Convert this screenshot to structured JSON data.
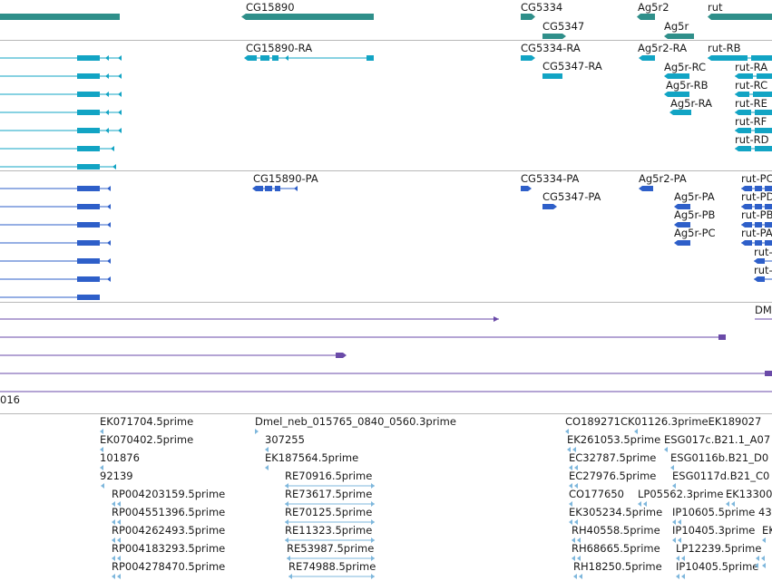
{
  "colors": {
    "gene": "#2f8f8a",
    "transcript": "#12a4c4",
    "protein": "#2e5fc9",
    "alignment": "#6a4aa8",
    "est": "#7eb7dc",
    "separator": "#b8b8b8",
    "text": "#1a1a1a"
  },
  "tracks": {
    "genes": {
      "labels": [
        "CG15890",
        "CG5334",
        "CG5347",
        "Ag5r2",
        "Ag5r",
        "rut"
      ]
    },
    "transcripts": {
      "labels": [
        "CG15890-RA",
        "CG5334-RA",
        "CG5347-RA",
        "Ag5r2-RA",
        "rut-RB",
        "Ag5r-RC",
        "rut-RA",
        "Ag5r-RB",
        "rut-RC",
        "Ag5r-RA",
        "rut-RE",
        "rut-RF",
        "rut-RD"
      ]
    },
    "proteins": {
      "labels": [
        "CG15890-PA",
        "CG5334-PA",
        "CG5347-PA",
        "Ag5r2-PA",
        "Ag5r-PA",
        "Ag5r-PB",
        "Ag5r-PC",
        "rut-PC",
        "rut-PD",
        "rut-PB",
        "rut-PA",
        "rut-",
        "rut-"
      ]
    },
    "alignments": {
      "labels": [
        "DM",
        "016"
      ]
    },
    "ests": {
      "labels": [
        "EK071704.5prime",
        "EK070402.5prime",
        "101876",
        "92139",
        "RP004203159.5prime",
        "RP004551396.5prime",
        "RP004262493.5prime",
        "RP004183293.5prime",
        "RP004278470.5prime",
        "Dmel_neb_015765_0840_0560.3prime",
        "307255",
        "EK187564.5prime",
        "RE70916.5prime",
        "RE73617.5prime",
        "RE70125.5prime",
        "RE11323.5prime",
        "RE53987.5prime",
        "RE74988.5prime",
        "CO189271CK01126.3primeEK189027",
        "EK261053.5prime",
        "EC32787.5prime",
        "EC27976.5prime",
        "CO177650",
        "EK305234.5prime",
        "RH40558.5prime",
        "RH68665.5prime",
        "RH18250.5prime",
        "ESG017c.B21.1_A07",
        "ESG0116b.B21_D0",
        "ESG0117d.B21_C0",
        "LP05562.3prime",
        "IP10605.5prime 43",
        "IP10405.3prime",
        "LP12239.5prime",
        "IP10405.5prime",
        "EK13300",
        "EK"
      ]
    }
  }
}
